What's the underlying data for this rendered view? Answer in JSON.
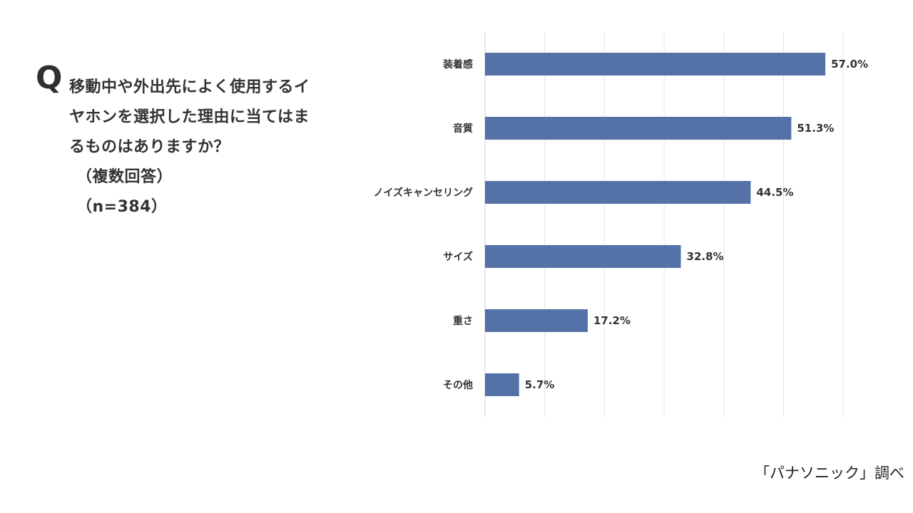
{
  "question": {
    "mark": "Q",
    "lines": [
      "移動中や外出先によく使用するイ",
      "ヤホンを選択した理由に当てはま",
      "るものはありますか？"
    ],
    "note": "（複数回答）",
    "sample": "（n=384）"
  },
  "source": "「パナソニック」調べ",
  "chart_data": {
    "type": "bar",
    "orientation": "horizontal",
    "categories": [
      "装着感",
      "音質",
      "ノイズキャンセリング",
      "サイズ",
      "重さ",
      "その他"
    ],
    "values": [
      57.0,
      51.3,
      44.5,
      32.8,
      17.2,
      5.7
    ],
    "value_labels": [
      "57.0%",
      "51.3%",
      "44.5%",
      "32.8%",
      "17.2%",
      "5.7%"
    ],
    "unit": "%",
    "xlim": [
      0,
      60
    ],
    "grid": true,
    "bar_color": "#5472a8",
    "gridline_color": "#e3e3e3",
    "legend": "none"
  }
}
